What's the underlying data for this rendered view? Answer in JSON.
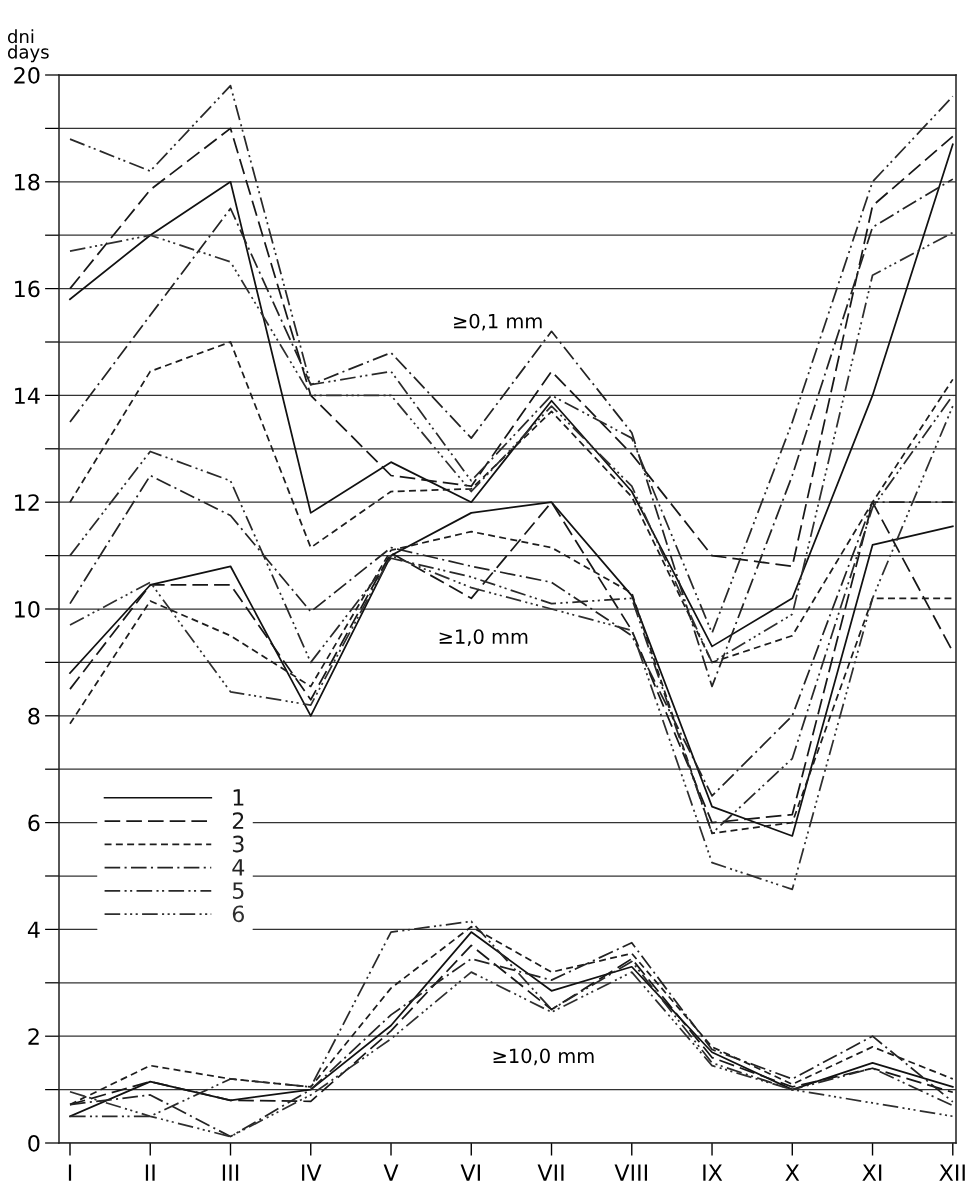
{
  "chart_data": {
    "type": "line",
    "ylabel": "dni\ndays",
    "categories": [
      "I",
      "II",
      "III",
      "IV",
      "V",
      "VI",
      "VII",
      "VIII",
      "IX",
      "X",
      "XI",
      "XII"
    ],
    "ylim": [
      0,
      20
    ],
    "yticks": [
      0,
      {
        "value": 1,
        "label": null
      },
      2,
      {
        "value": 3,
        "label": null
      },
      4,
      {
        "value": 5,
        "label": null
      },
      6,
      {
        "value": 7,
        "label": null
      },
      8,
      {
        "value": 9,
        "label": null
      },
      10,
      {
        "value": 11,
        "label": null
      },
      12,
      {
        "value": 13,
        "label": null
      },
      14,
      {
        "value": 15,
        "label": null
      },
      16,
      {
        "value": 17,
        "label": null
      },
      18,
      {
        "value": 19,
        "label": null
      },
      20
    ],
    "grid": "y",
    "legend": "lower left",
    "annotations": [
      "≥0,1 mm",
      "≥1,0 mm",
      "≥10,0 mm"
    ],
    "series": [
      {
        "name": "1",
        "color": "#111111",
        "line_style": "solid",
        "values": [
          15.8,
          17.0,
          18.0,
          11.8,
          12.75,
          12.0,
          13.9,
          12.2,
          9.3,
          10.2,
          14.0,
          18.7
        ]
      },
      {
        "name": "2",
        "color": "#171717",
        "line_style": "long_dashed",
        "values": [
          16.0,
          17.85,
          19.0,
          14.0,
          12.5,
          12.3,
          14.45,
          12.9,
          11.0,
          10.8,
          17.55,
          18.85
        ]
      },
      {
        "name": "3",
        "color": "#1d1d1d",
        "line_style": "dashed",
        "values": [
          12.0,
          14.45,
          15.0,
          11.15,
          12.2,
          12.25,
          13.7,
          12.1,
          9.0,
          9.5,
          12.0,
          14.3
        ]
      },
      {
        "name": "4",
        "color": "#232323",
        "line_style": "dash_dot",
        "values": [
          13.5,
          15.5,
          17.5,
          14.2,
          14.8,
          13.2,
          15.2,
          13.3,
          8.55,
          12.5,
          17.15,
          18.05
        ]
      },
      {
        "name": "5",
        "color": "#292929",
        "line_style": "dash_dot_dot",
        "values": [
          18.8,
          18.2,
          19.8,
          14.2,
          14.45,
          12.4,
          14.0,
          13.2,
          9.55,
          13.5,
          18.0,
          19.6
        ]
      },
      {
        "name": "6",
        "color": "#2f2f2f",
        "line_style": "dash_dot_dot_dot",
        "values": [
          16.7,
          17.0,
          16.5,
          14.0,
          14.0,
          12.2,
          13.8,
          12.3,
          9.0,
          9.9,
          16.25,
          17.05
        ]
      },
      {
        "color": "#111111",
        "line_style": "solid",
        "values": [
          8.8,
          10.45,
          10.8,
          8.0,
          11.0,
          11.8,
          12.0,
          10.25,
          6.3,
          5.75,
          11.2,
          11.55
        ]
      },
      {
        "color": "#171717",
        "line_style": "long_dashed",
        "values": [
          8.5,
          10.45,
          10.45,
          8.3,
          11.05,
          10.2,
          12.0,
          9.6,
          6.0,
          6.15,
          12.0,
          9.2
        ]
      },
      {
        "color": "#1d1d1d",
        "line_style": "dashed",
        "values": [
          7.85,
          10.15,
          9.5,
          8.55,
          11.1,
          11.45,
          11.15,
          10.3,
          5.8,
          6.0,
          10.2,
          10.2
        ]
      },
      {
        "color": "#232323",
        "line_style": "dash_dot",
        "values": [
          10.1,
          12.5,
          11.75,
          9.95,
          11.15,
          10.8,
          10.5,
          9.5,
          6.5,
          8.0,
          12.0,
          12.0
        ]
      },
      {
        "color": "#292929",
        "line_style": "dash_dot_dot",
        "values": [
          11.0,
          12.95,
          12.4,
          9.0,
          10.95,
          10.6,
          10.1,
          10.2,
          5.8,
          7.2,
          11.9,
          14.0
        ]
      },
      {
        "color": "#2f2f2f",
        "line_style": "dash_dot_dot_dot",
        "values": [
          9.7,
          10.5,
          8.45,
          8.2,
          11.0,
          10.4,
          10.0,
          9.6,
          5.25,
          4.75,
          10.2,
          13.8
        ]
      },
      {
        "color": "#111111",
        "line_style": "solid",
        "values": [
          0.5,
          1.15,
          0.8,
          1.0,
          2.2,
          3.95,
          2.85,
          3.3,
          1.7,
          1.0,
          1.5,
          1.05
        ]
      },
      {
        "color": "#171717",
        "line_style": "long_dashed",
        "values": [
          0.72,
          1.15,
          0.8,
          0.78,
          2.1,
          3.7,
          2.5,
          3.45,
          1.6,
          1.05,
          1.4,
          0.95
        ]
      },
      {
        "color": "#1d1d1d",
        "line_style": "dashed",
        "values": [
          0.72,
          1.45,
          1.2,
          1.05,
          2.9,
          4.05,
          3.2,
          3.55,
          1.8,
          1.1,
          1.8,
          1.2
        ]
      },
      {
        "color": "#232323",
        "line_style": "dash_dot",
        "values": [
          0.72,
          0.9,
          0.12,
          1.0,
          2.4,
          3.45,
          3.05,
          3.75,
          1.75,
          1.2,
          2.0,
          0.77
        ]
      },
      {
        "color": "#292929",
        "line_style": "dash_dot_dot",
        "values": [
          0.5,
          0.5,
          1.2,
          1.05,
          3.95,
          4.15,
          2.5,
          3.4,
          1.5,
          1.0,
          1.4,
          0.7
        ]
      },
      {
        "color": "#2f2f2f",
        "line_style": "dash_dot_dot_dot",
        "values": [
          0.96,
          0.5,
          0.12,
          0.9,
          1.95,
          3.2,
          2.45,
          3.2,
          1.45,
          1.0,
          0.75,
          0.5
        ]
      }
    ]
  }
}
